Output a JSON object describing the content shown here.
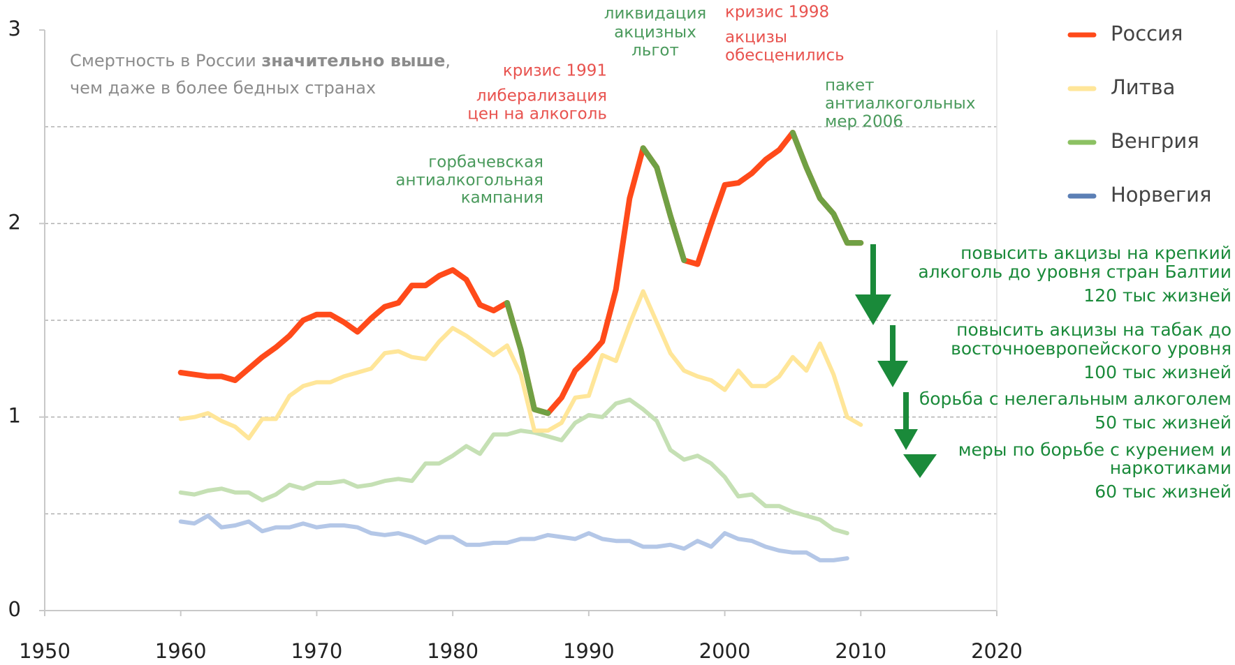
{
  "chart_data": {
    "type": "line",
    "note": [
      "Смертность в России ",
      "значительно выше",
      ",",
      "чем даже в более бедных странах"
    ],
    "x": [
      1960,
      1961,
      1962,
      1963,
      1964,
      1965,
      1966,
      1967,
      1968,
      1969,
      1970,
      1971,
      1972,
      1973,
      1974,
      1975,
      1976,
      1977,
      1978,
      1979,
      1980,
      1981,
      1982,
      1983,
      1984,
      1985,
      1986,
      1987,
      1988,
      1989,
      1990,
      1991,
      1992,
      1993,
      1994,
      1995,
      1996,
      1997,
      1998,
      1999,
      2000,
      2001,
      2002,
      2003,
      2004,
      2005,
      2006,
      2007,
      2008,
      2009,
      2010
    ],
    "xlim": [
      1950,
      2020
    ],
    "xticks": [
      1950,
      1960,
      1970,
      1980,
      1990,
      2000,
      2010,
      2020
    ],
    "ylim": [
      0,
      3
    ],
    "yticks": [
      0,
      1,
      2,
      3
    ],
    "ygrid": [
      0.5,
      1,
      1.5,
      2,
      2.5
    ],
    "grid": true,
    "legend": "right",
    "series": [
      {
        "name": "Россия",
        "color": "#ff4a1a",
        "highlight_color": "#70a044",
        "highlights": [
          [
            1984,
            1987
          ],
          [
            1994,
            1997
          ],
          [
            2005,
            2010
          ]
        ],
        "values": [
          1.23,
          1.22,
          1.21,
          1.21,
          1.19,
          1.25,
          1.31,
          1.36,
          1.42,
          1.5,
          1.53,
          1.53,
          1.49,
          1.44,
          1.51,
          1.57,
          1.59,
          1.68,
          1.68,
          1.73,
          1.76,
          1.71,
          1.58,
          1.55,
          1.59,
          1.35,
          1.04,
          1.02,
          1.1,
          1.24,
          1.31,
          1.39,
          1.66,
          2.13,
          2.39,
          2.29,
          2.04,
          1.81,
          1.79,
          2.0,
          2.2,
          2.21,
          2.26,
          2.33,
          2.38,
          2.47,
          2.29,
          2.13,
          2.05,
          1.9,
          1.9
        ]
      },
      {
        "name": "Литва",
        "color": "#ffe699",
        "values": [
          0.99,
          1.0,
          1.02,
          0.98,
          0.95,
          0.89,
          0.99,
          0.99,
          1.11,
          1.16,
          1.18,
          1.18,
          1.21,
          1.23,
          1.25,
          1.33,
          1.34,
          1.31,
          1.3,
          1.39,
          1.46,
          1.42,
          1.37,
          1.32,
          1.37,
          1.22,
          0.93,
          0.93,
          0.97,
          1.1,
          1.11,
          1.32,
          1.29,
          1.48,
          1.65,
          1.49,
          1.33,
          1.24,
          1.21,
          1.19,
          1.14,
          1.24,
          1.16,
          1.16,
          1.21,
          1.31,
          1.24,
          1.38,
          1.22,
          1.0,
          0.96
        ]
      },
      {
        "name": "Венгрия",
        "color": "#c5e0b4",
        "legend_color": "#8cc163",
        "values": [
          0.61,
          0.6,
          0.62,
          0.63,
          0.61,
          0.61,
          0.57,
          0.6,
          0.65,
          0.63,
          0.66,
          0.66,
          0.67,
          0.64,
          0.65,
          0.67,
          0.68,
          0.67,
          0.76,
          0.76,
          0.8,
          0.85,
          0.81,
          0.91,
          0.91,
          0.93,
          0.92,
          0.9,
          0.88,
          0.97,
          1.01,
          1.0,
          1.07,
          1.09,
          1.04,
          0.98,
          0.83,
          0.78,
          0.8,
          0.76,
          0.69,
          0.59,
          0.6,
          0.54,
          0.54,
          0.51,
          0.49,
          0.47,
          0.42,
          0.4,
          null
        ]
      },
      {
        "name": "Норвегия",
        "color": "#b4c7e7",
        "legend_color": "#5b7fb5",
        "values": [
          0.46,
          0.45,
          0.49,
          0.43,
          0.44,
          0.46,
          0.41,
          0.43,
          0.43,
          0.45,
          0.43,
          0.44,
          0.44,
          0.43,
          0.4,
          0.39,
          0.4,
          0.38,
          0.35,
          0.38,
          0.38,
          0.34,
          0.34,
          0.35,
          0.35,
          0.37,
          0.37,
          0.39,
          0.38,
          0.37,
          0.4,
          0.37,
          0.36,
          0.36,
          0.33,
          0.33,
          0.34,
          0.32,
          0.36,
          0.33,
          0.4,
          0.37,
          0.36,
          0.33,
          0.31,
          0.3,
          0.3,
          0.26,
          0.26,
          0.27,
          null
        ]
      }
    ],
    "annotations": [
      {
        "color": "#4a9a5c",
        "lines": [
          "горбачевская",
          "антиалкогольная",
          "кампания"
        ]
      },
      {
        "color": "#e8534f",
        "lines": [
          "кризис 1991",
          "либерализация",
          "цен на алкоголь"
        ]
      },
      {
        "color": "#4a9a5c",
        "lines": [
          "ликвидация",
          "акцизных",
          "льгот"
        ]
      },
      {
        "color": "#e8534f",
        "lines": [
          "кризис 1998",
          "акцизы",
          "обесценились"
        ]
      },
      {
        "color": "#4a9a5c",
        "lines": [
          "пакет",
          "антиалкогольных",
          "мер 2006"
        ]
      }
    ],
    "measures": [
      {
        "lines": [
          "повысить акцизы на крепкий",
          "алкоголь до уровня стран Балтии"
        ],
        "lives": "120 тыс жизней"
      },
      {
        "lines": [
          "повысить акцизы на табак до",
          "восточноевропейского уровня"
        ],
        "lives": "100 тыс жизней"
      },
      {
        "lines": [
          "борьба с нелегальным алкоголем"
        ],
        "lives": "50 тыс жизней"
      },
      {
        "lines": [
          "меры по борьбе с курением и",
          "наркотиками"
        ],
        "lives": "60 тыс жизней"
      }
    ],
    "measures_color": "#1a8a3a"
  }
}
